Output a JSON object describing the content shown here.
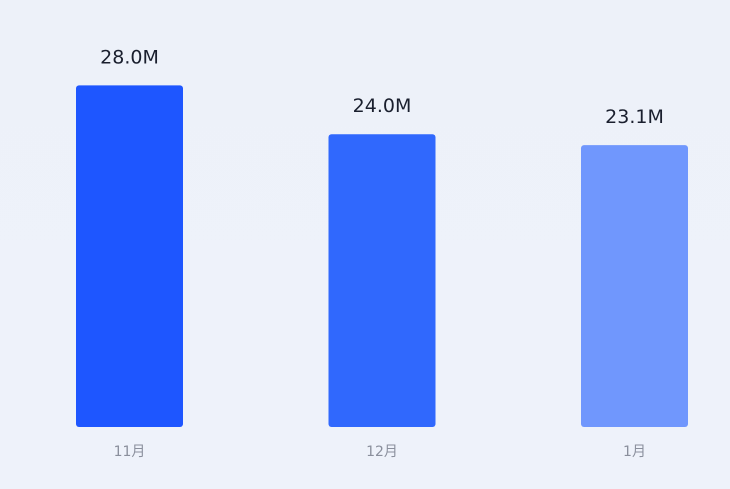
{
  "chart_data": {
    "type": "bar",
    "categories": [
      "11月",
      "12月",
      "1月"
    ],
    "values": [
      28.0,
      24.0,
      23.1
    ],
    "value_labels": [
      "28.0M",
      "24.0M",
      "23.1M"
    ],
    "colors": [
      "#1e56ff",
      "#3068fd",
      "#7097fd"
    ]
  }
}
